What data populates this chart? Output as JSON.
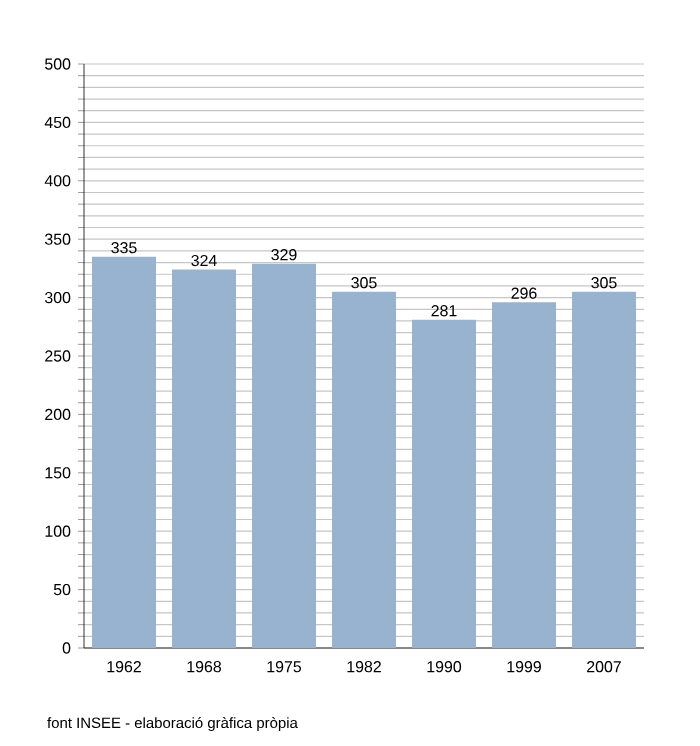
{
  "chart_data": {
    "type": "bar",
    "categories": [
      "1962",
      "1968",
      "1975",
      "1982",
      "1990",
      "1999",
      "2007"
    ],
    "values": [
      335,
      324,
      329,
      305,
      281,
      296,
      305
    ],
    "color": "#98b3cf",
    "data_labels": true,
    "grid": "y",
    "ylim": [
      0,
      500
    ],
    "yticks": [
      0,
      {
        "value": 10,
        "label": null
      },
      {
        "value": 20,
        "label": null
      },
      {
        "value": 30,
        "label": null
      },
      {
        "value": 40,
        "label": null
      },
      50,
      {
        "value": 60,
        "label": null
      },
      {
        "value": 70,
        "label": null
      },
      {
        "value": 80,
        "label": null
      },
      {
        "value": 90,
        "label": null
      },
      100,
      {
        "value": 110,
        "label": null
      },
      {
        "value": 120,
        "label": null
      },
      {
        "value": 130,
        "label": null
      },
      {
        "value": 140,
        "label": null
      },
      150,
      {
        "value": 160,
        "label": null
      },
      {
        "value": 170,
        "label": null
      },
      {
        "value": 180,
        "label": null
      },
      {
        "value": 190,
        "label": null
      },
      200,
      {
        "value": 210,
        "label": null
      },
      {
        "value": 220,
        "label": null
      },
      {
        "value": 230,
        "label": null
      },
      {
        "value": 240,
        "label": null
      },
      250,
      {
        "value": 260,
        "label": null
      },
      {
        "value": 270,
        "label": null
      },
      {
        "value": 280,
        "label": null
      },
      {
        "value": 290,
        "label": null
      },
      300,
      {
        "value": 310,
        "label": null
      },
      {
        "value": 320,
        "label": null
      },
      {
        "value": 330,
        "label": null
      },
      {
        "value": 340,
        "label": null
      },
      350,
      {
        "value": 360,
        "label": null
      },
      {
        "value": 370,
        "label": null
      },
      {
        "value": 380,
        "label": null
      },
      {
        "value": 390,
        "label": null
      },
      400,
      {
        "value": 410,
        "label": null
      },
      {
        "value": 420,
        "label": null
      },
      {
        "value": 430,
        "label": null
      },
      {
        "value": 440,
        "label": null
      },
      450,
      {
        "value": 460,
        "label": null
      },
      {
        "value": 470,
        "label": null
      },
      {
        "value": 480,
        "label": null
      },
      {
        "value": 490,
        "label": null
      },
      500
    ],
    "annotations": [
      "font INSEE - elaboració gràfica pròpia"
    ]
  }
}
